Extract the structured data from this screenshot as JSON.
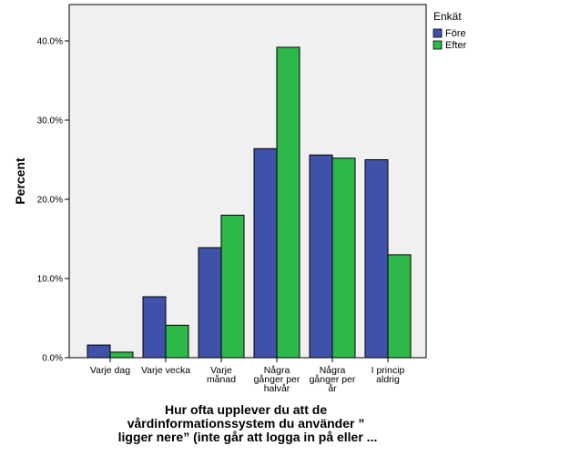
{
  "chart_data": {
    "type": "bar",
    "categories": [
      [
        "Varje dag"
      ],
      [
        "Varje vecka"
      ],
      [
        "Varje",
        "månad"
      ],
      [
        "Några",
        "gånger per",
        "halvår"
      ],
      [
        "Några",
        "gånger per",
        "år"
      ],
      [
        "I princip",
        "aldrig"
      ]
    ],
    "series": [
      {
        "name": "Före",
        "values": [
          1.6,
          7.7,
          13.9,
          26.4,
          25.6,
          25.0
        ]
      },
      {
        "name": "Efter",
        "values": [
          0.7,
          4.1,
          18.0,
          39.2,
          25.2,
          13.0
        ]
      }
    ],
    "colors": {
      "Före": "#3f51a8",
      "Efter": "#2db84a",
      "plot_bg": "#f0f0f0"
    },
    "ylabel": "Percent",
    "xlabel": [
      "Hur ofta upplever du att de",
      "vårdinformationssystem du använder ”",
      "ligger nere” (inte går att logga in på eller ..."
    ],
    "ylim": [
      0,
      40
    ],
    "yticks": [
      "0.0%",
      "10.0%",
      "20.0%",
      "30.0%",
      "40.0%"
    ],
    "ytick_values": [
      0,
      10,
      20,
      30,
      40
    ],
    "legend": {
      "title": "Enkät",
      "placement": "top-right"
    },
    "grid": false
  }
}
